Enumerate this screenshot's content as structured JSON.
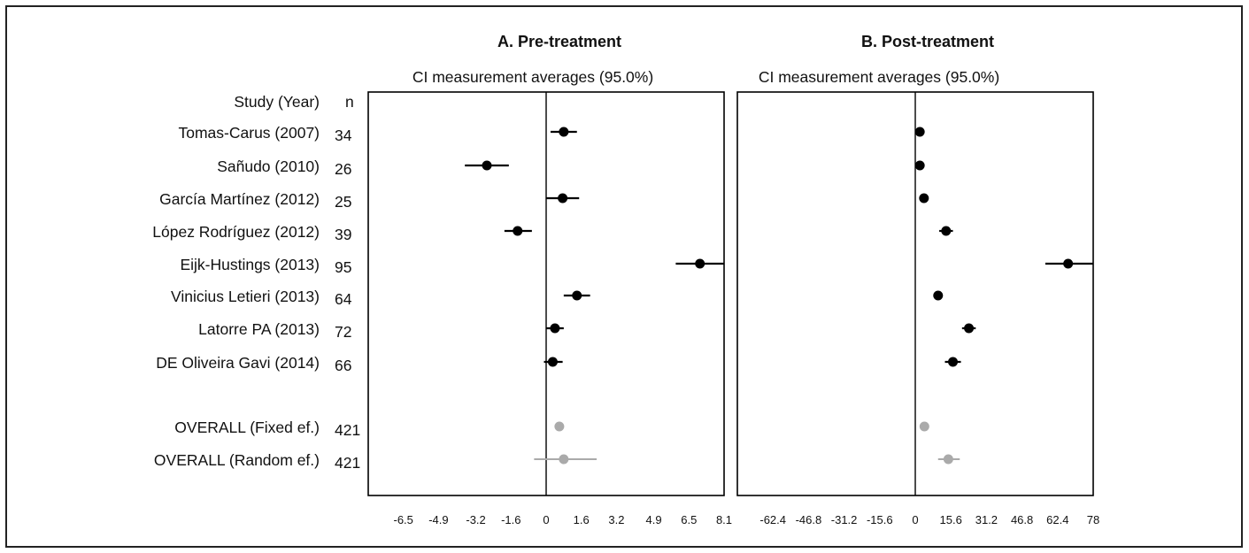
{
  "header": {
    "study_col": "Study (Year)",
    "n_col": "n"
  },
  "rows": [
    {
      "label": "Tomas-Carus (2007)",
      "n": "34",
      "overall": false
    },
    {
      "label": "Sañudo (2010)",
      "n": "26",
      "overall": false
    },
    {
      "label": "García Martínez (2012)",
      "n": "25",
      "overall": false
    },
    {
      "label": "López Rodríguez (2012)",
      "n": "39",
      "overall": false
    },
    {
      "label": "Eijk-Hustings (2013)",
      "n": "95",
      "overall": false
    },
    {
      "label": "Vinicius Letieri (2013)",
      "n": "64",
      "overall": false
    },
    {
      "label": "Latorre PA (2013)",
      "n": "72",
      "overall": false
    },
    {
      "label": "DE Oliveira Gavi (2014)",
      "n": "66",
      "overall": false
    },
    {
      "label": "OVERALL (Fixed ef.)",
      "n": "421",
      "overall": true
    },
    {
      "label": "OVERALL (Random ef.)",
      "n": "421",
      "overall": true
    }
  ],
  "colors": {
    "study_marker": "#000000",
    "overall_marker": "#aaaaaa",
    "axis": "#000000"
  },
  "chart_data": [
    {
      "type": "forest",
      "title": "A. Pre-treatment",
      "subtitle": "CI measurement averages (95.0%)",
      "xlim": [
        -8.1,
        8.1
      ],
      "ticks": [
        -6.5,
        -4.9,
        -3.2,
        -1.6,
        0,
        1.6,
        3.2,
        4.9,
        6.5,
        8.1
      ],
      "tick_labels": [
        "-6.5",
        "-4.9",
        "-3.2",
        "-1.6",
        "0",
        "1.6",
        "3.2",
        "4.9",
        "6.5",
        "8.1"
      ],
      "points": [
        {
          "estimate": 0.8,
          "lower": 0.2,
          "upper": 1.4
        },
        {
          "estimate": -2.7,
          "lower": -3.7,
          "upper": -1.7
        },
        {
          "estimate": 0.75,
          "lower": 0.0,
          "upper": 1.5
        },
        {
          "estimate": -1.3,
          "lower": -1.9,
          "upper": -0.65
        },
        {
          "estimate": 7.0,
          "lower": 5.9,
          "upper": 8.1
        },
        {
          "estimate": 1.4,
          "lower": 0.8,
          "upper": 2.0
        },
        {
          "estimate": 0.4,
          "lower": 0.0,
          "upper": 0.8
        },
        {
          "estimate": 0.3,
          "lower": -0.1,
          "upper": 0.75
        },
        {
          "estimate": 0.6,
          "lower": 0.6,
          "upper": 0.6
        },
        {
          "estimate": 0.8,
          "lower": -0.55,
          "upper": 2.3
        }
      ]
    },
    {
      "type": "forest",
      "title": "B. Post-treatment",
      "subtitle": "CI measurement averages (95.0%)",
      "xlim": [
        -78,
        78
      ],
      "ticks": [
        -62.4,
        -46.8,
        -31.2,
        -15.6,
        0,
        15.6,
        31.2,
        46.8,
        62.4,
        78
      ],
      "tick_labels": [
        "-62.4",
        "-46.8",
        "-31.2",
        "-15.6",
        "0",
        "15.6",
        "31.2",
        "46.8",
        "62.4",
        "78"
      ],
      "points": [
        {
          "estimate": 2.0,
          "lower": 2.0,
          "upper": 2.0
        },
        {
          "estimate": 2.0,
          "lower": 2.0,
          "upper": 2.0
        },
        {
          "estimate": 3.8,
          "lower": 3.8,
          "upper": 3.8
        },
        {
          "estimate": 13.5,
          "lower": 10.5,
          "upper": 16.5
        },
        {
          "estimate": 67.0,
          "lower": 57.0,
          "upper": 78.0
        },
        {
          "estimate": 10.0,
          "lower": 10.0,
          "upper": 10.0
        },
        {
          "estimate": 23.5,
          "lower": 20.5,
          "upper": 26.5
        },
        {
          "estimate": 16.5,
          "lower": 13.0,
          "upper": 20.0
        },
        {
          "estimate": 4.0,
          "lower": 4.0,
          "upper": 4.0
        },
        {
          "estimate": 14.5,
          "lower": 10.0,
          "upper": 19.5
        }
      ]
    }
  ]
}
